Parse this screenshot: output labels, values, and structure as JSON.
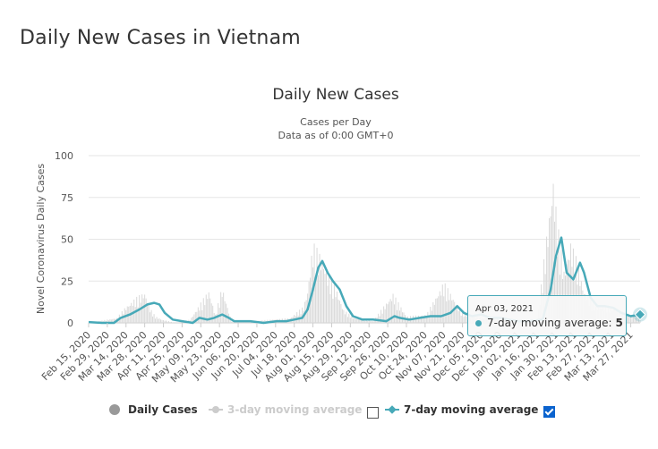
{
  "page": {
    "title": "Daily New Cases in Vietnam"
  },
  "chart_data": {
    "type": "line",
    "title": "Daily New Cases",
    "subtitle_lines": [
      "Cases per Day",
      "Data as of 0:00 GMT+0"
    ],
    "ylabel": "Novel Coronavirus Daily Cases",
    "xlabel": "",
    "ylim": [
      0,
      100
    ],
    "yticks": [
      0,
      25,
      50,
      75,
      100
    ],
    "grid": true,
    "legend_position": "bottom",
    "x_start": "2020-02-15",
    "x_end": "2021-04-03",
    "x_tick_labels": [
      "Feb 15, 2020",
      "Feb 29, 2020",
      "Mar 14, 2020",
      "Mar 28, 2020",
      "Apr 11, 2020",
      "Apr 25, 2020",
      "May 09, 2020",
      "May 23, 2020",
      "Jun 06, 2020",
      "Jun 20, 2020",
      "Jul 04, 2020",
      "Jul 18, 2020",
      "Aug 01, 2020",
      "Aug 15, 2020",
      "Aug 29, 2020",
      "Sep 12, 2020",
      "Sep 26, 2020",
      "Oct 10, 2020",
      "Oct 24, 2020",
      "Nov 07, 2020",
      "Nov 21, 2020",
      "Dec 05, 2020",
      "Dec 19, 2020",
      "Jan 02, 2021",
      "Jan 16, 2021",
      "Jan 30, 2021",
      "Feb 13, 2021",
      "Feb 27, 2021",
      "Mar 13, 2021",
      "Mar 27, 2021"
    ],
    "series": [
      {
        "name": "Daily Cases",
        "color": "#999999",
        "visible": true,
        "kind": "bar",
        "points": [
          [
            "2020-02-15",
            0
          ],
          [
            "2020-03-07",
            3
          ],
          [
            "2020-03-14",
            10
          ],
          [
            "2020-03-21",
            15
          ],
          [
            "2020-03-28",
            19
          ],
          [
            "2020-04-01",
            9
          ],
          [
            "2020-04-05",
            4
          ],
          [
            "2020-04-10",
            2
          ],
          [
            "2020-04-20",
            0
          ],
          [
            "2020-05-01",
            2
          ],
          [
            "2020-05-15",
            20
          ],
          [
            "2020-05-20",
            5
          ],
          [
            "2020-05-25",
            22
          ],
          [
            "2020-06-01",
            1
          ],
          [
            "2020-06-15",
            1
          ],
          [
            "2020-07-01",
            2
          ],
          [
            "2020-07-15",
            3
          ],
          [
            "2020-07-25",
            10
          ],
          [
            "2020-07-28",
            20
          ],
          [
            "2020-08-01",
            49
          ],
          [
            "2020-08-04",
            45
          ],
          [
            "2020-08-08",
            40
          ],
          [
            "2020-08-12",
            30
          ],
          [
            "2020-08-18",
            22
          ],
          [
            "2020-08-24",
            8
          ],
          [
            "2020-09-01",
            3
          ],
          [
            "2020-09-15",
            1
          ],
          [
            "2020-09-30",
            18
          ],
          [
            "2020-10-10",
            4
          ],
          [
            "2020-10-25",
            5
          ],
          [
            "2020-11-07",
            25
          ],
          [
            "2020-11-21",
            6
          ],
          [
            "2020-12-05",
            3
          ],
          [
            "2020-12-19",
            3
          ],
          [
            "2021-01-02",
            2
          ],
          [
            "2021-01-16",
            1
          ],
          [
            "2021-01-28",
            90
          ],
          [
            "2021-01-31",
            62
          ],
          [
            "2021-02-05",
            32
          ],
          [
            "2021-02-10",
            50
          ],
          [
            "2021-02-14",
            40
          ],
          [
            "2021-02-20",
            20
          ],
          [
            "2021-03-01",
            10
          ],
          [
            "2021-03-13",
            10
          ],
          [
            "2021-03-27",
            5
          ],
          [
            "2021-04-03",
            5
          ]
        ]
      },
      {
        "name": "3-day moving average",
        "color": "#cccccc",
        "visible": false,
        "kind": "line",
        "points": []
      },
      {
        "name": "7-day moving average",
        "color": "#47a9b8",
        "visible": true,
        "kind": "line",
        "points": [
          [
            "2020-02-15",
            0.5
          ],
          [
            "2020-02-25",
            0
          ],
          [
            "2020-03-05",
            0
          ],
          [
            "2020-03-10",
            3
          ],
          [
            "2020-03-17",
            5
          ],
          [
            "2020-03-24",
            8
          ],
          [
            "2020-03-30",
            11
          ],
          [
            "2020-04-04",
            12
          ],
          [
            "2020-04-08",
            11
          ],
          [
            "2020-04-12",
            6
          ],
          [
            "2020-04-18",
            2
          ],
          [
            "2020-04-25",
            1
          ],
          [
            "2020-05-03",
            0
          ],
          [
            "2020-05-08",
            3
          ],
          [
            "2020-05-14",
            2
          ],
          [
            "2020-05-19",
            3
          ],
          [
            "2020-05-25",
            5
          ],
          [
            "2020-05-30",
            3
          ],
          [
            "2020-06-03",
            1
          ],
          [
            "2020-06-15",
            1
          ],
          [
            "2020-06-25",
            0
          ],
          [
            "2020-07-05",
            1
          ],
          [
            "2020-07-12",
            1
          ],
          [
            "2020-07-18",
            2
          ],
          [
            "2020-07-24",
            3
          ],
          [
            "2020-07-28",
            8
          ],
          [
            "2020-08-01",
            20
          ],
          [
            "2020-08-05",
            33
          ],
          [
            "2020-08-08",
            37
          ],
          [
            "2020-08-12",
            30
          ],
          [
            "2020-08-16",
            25
          ],
          [
            "2020-08-21",
            20
          ],
          [
            "2020-08-26",
            10
          ],
          [
            "2020-08-31",
            4
          ],
          [
            "2020-09-07",
            2
          ],
          [
            "2020-09-15",
            2
          ],
          [
            "2020-09-25",
            1
          ],
          [
            "2020-10-01",
            4
          ],
          [
            "2020-10-05",
            3
          ],
          [
            "2020-10-12",
            2
          ],
          [
            "2020-10-20",
            3
          ],
          [
            "2020-10-28",
            4
          ],
          [
            "2020-11-05",
            4
          ],
          [
            "2020-11-12",
            6
          ],
          [
            "2020-11-17",
            10
          ],
          [
            "2020-11-22",
            6
          ],
          [
            "2020-11-28",
            4
          ],
          [
            "2020-12-05",
            5
          ],
          [
            "2020-12-12",
            3
          ],
          [
            "2020-12-19",
            3
          ],
          [
            "2020-12-26",
            2
          ],
          [
            "2021-01-02",
            1
          ],
          [
            "2021-01-10",
            1
          ],
          [
            "2021-01-20",
            2
          ],
          [
            "2021-01-26",
            20
          ],
          [
            "2021-01-30",
            40
          ],
          [
            "2021-02-03",
            51
          ],
          [
            "2021-02-07",
            30
          ],
          [
            "2021-02-12",
            26
          ],
          [
            "2021-02-17",
            36
          ],
          [
            "2021-02-20",
            30
          ],
          [
            "2021-02-25",
            15
          ],
          [
            "2021-03-02",
            10
          ],
          [
            "2021-03-08",
            10
          ],
          [
            "2021-03-14",
            9
          ],
          [
            "2021-03-20",
            6
          ],
          [
            "2021-03-27",
            4
          ],
          [
            "2021-04-03",
            5
          ]
        ]
      }
    ],
    "tooltip": {
      "date": "Apr 03, 2021",
      "series": "7-day moving average",
      "value": "5"
    }
  },
  "legend": {
    "daily": "Daily Cases",
    "ma3": "3-day moving average",
    "ma7": "7-day moving average",
    "ma3_checked": false,
    "ma7_checked": true
  },
  "tooltip": {
    "date": "Apr 03, 2021",
    "label": "7-day moving average:",
    "value": "5"
  }
}
